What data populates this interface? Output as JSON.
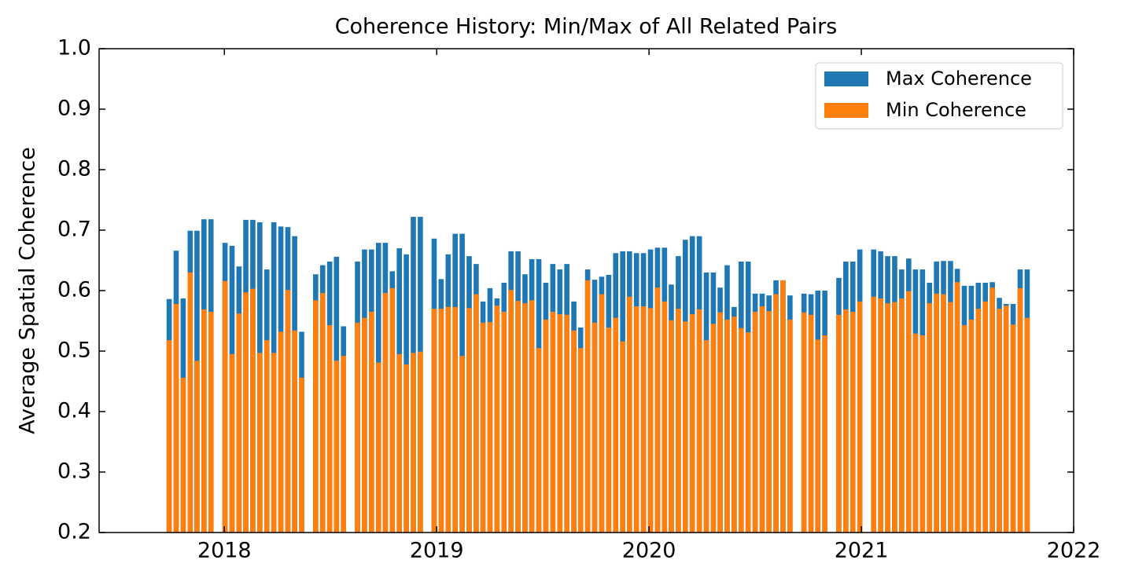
{
  "chart_data": {
    "type": "bar",
    "title": "Coherence History: Min/Max of All Related Pairs",
    "y_label": "Average Spatial Coherence",
    "x": [
      2017.74,
      2017.773,
      2017.806,
      2017.839,
      2017.871,
      2017.904,
      2017.937,
      2018.003,
      2018.036,
      2018.069,
      2018.101,
      2018.134,
      2018.167,
      2018.2,
      2018.233,
      2018.266,
      2018.299,
      2018.331,
      2018.364,
      2018.43,
      2018.463,
      2018.496,
      2018.528,
      2018.561,
      2018.627,
      2018.66,
      2018.693,
      2018.726,
      2018.758,
      2018.791,
      2018.824,
      2018.857,
      2018.89,
      2018.923,
      2018.988,
      2019.021,
      2019.054,
      2019.087,
      2019.12,
      2019.153,
      2019.186,
      2019.218,
      2019.251,
      2019.284,
      2019.317,
      2019.35,
      2019.383,
      2019.416,
      2019.448,
      2019.481,
      2019.514,
      2019.547,
      2019.58,
      2019.613,
      2019.646,
      2019.678,
      2019.711,
      2019.744,
      2019.777,
      2019.81,
      2019.843,
      2019.876,
      2019.908,
      2019.941,
      2019.974,
      2020.007,
      2020.04,
      2020.073,
      2020.105,
      2020.138,
      2020.171,
      2020.204,
      2020.237,
      2020.27,
      2020.303,
      2020.335,
      2020.368,
      2020.401,
      2020.434,
      2020.467,
      2020.5,
      2020.533,
      2020.565,
      2020.598,
      2020.631,
      2020.664,
      2020.73,
      2020.763,
      2020.795,
      2020.828,
      2020.894,
      2020.927,
      2020.96,
      2020.993,
      2021.058,
      2021.091,
      2021.124,
      2021.157,
      2021.19,
      2021.223,
      2021.255,
      2021.288,
      2021.321,
      2021.354,
      2021.387,
      2021.42,
      2021.452,
      2021.485,
      2021.518,
      2021.551,
      2021.584,
      2021.617,
      2021.65,
      2021.682,
      2021.715,
      2021.748,
      2021.781
    ],
    "series": [
      {
        "name": "Max Coherence",
        "color": "#1f77b4",
        "values": [
          0.586,
          0.666,
          0.587,
          0.699,
          0.699,
          0.718,
          0.718,
          0.679,
          0.674,
          0.64,
          0.717,
          0.717,
          0.713,
          0.635,
          0.713,
          0.706,
          0.705,
          0.69,
          0.532,
          0.627,
          0.642,
          0.648,
          0.656,
          0.541,
          0.648,
          0.668,
          0.668,
          0.679,
          0.679,
          0.632,
          0.67,
          0.66,
          0.722,
          0.722,
          0.686,
          0.619,
          0.66,
          0.694,
          0.694,
          0.657,
          0.644,
          0.582,
          0.604,
          0.587,
          0.613,
          0.665,
          0.665,
          0.627,
          0.652,
          0.652,
          0.613,
          0.644,
          0.635,
          0.644,
          0.582,
          0.539,
          0.635,
          0.618,
          0.623,
          0.626,
          0.662,
          0.665,
          0.665,
          0.662,
          0.662,
          0.668,
          0.671,
          0.671,
          0.61,
          0.657,
          0.684,
          0.69,
          0.69,
          0.63,
          0.63,
          0.605,
          0.642,
          0.573,
          0.648,
          0.648,
          0.595,
          0.595,
          0.592,
          0.617,
          0.617,
          0.592,
          0.595,
          0.594,
          0.6,
          0.6,
          0.621,
          0.648,
          0.648,
          0.668,
          0.668,
          0.665,
          0.657,
          0.657,
          0.635,
          0.653,
          0.635,
          0.635,
          0.613,
          0.648,
          0.649,
          0.649,
          0.636,
          0.608,
          0.608,
          0.613,
          0.613,
          0.614,
          0.588,
          0.578,
          0.578,
          0.635,
          0.635
        ]
      },
      {
        "name": "Min Coherence",
        "color": "#ff7f0e",
        "values": [
          0.518,
          0.578,
          0.456,
          0.63,
          0.484,
          0.569,
          0.565,
          0.616,
          0.495,
          0.562,
          0.597,
          0.603,
          0.497,
          0.518,
          0.497,
          0.532,
          0.601,
          0.534,
          0.456,
          0.584,
          0.596,
          0.543,
          0.484,
          0.492,
          0.547,
          0.555,
          0.565,
          0.481,
          0.596,
          0.604,
          0.495,
          0.478,
          0.497,
          0.499,
          0.57,
          0.57,
          0.573,
          0.573,
          0.492,
          0.571,
          0.594,
          0.547,
          0.548,
          0.575,
          0.565,
          0.601,
          0.583,
          0.579,
          0.584,
          0.505,
          0.552,
          0.565,
          0.561,
          0.56,
          0.534,
          0.505,
          0.617,
          0.547,
          0.594,
          0.539,
          0.555,
          0.516,
          0.59,
          0.574,
          0.574,
          0.571,
          0.605,
          0.582,
          0.551,
          0.57,
          0.549,
          0.561,
          0.569,
          0.518,
          0.545,
          0.564,
          0.552,
          0.557,
          0.538,
          0.531,
          0.565,
          0.574,
          0.566,
          0.594,
          0.617,
          0.552,
          0.564,
          0.56,
          0.519,
          0.526,
          0.56,
          0.569,
          0.565,
          0.582,
          0.59,
          0.587,
          0.579,
          0.581,
          0.587,
          0.599,
          0.529,
          0.526,
          0.579,
          0.595,
          0.594,
          0.581,
          0.614,
          0.543,
          0.552,
          0.57,
          0.582,
          0.605,
          0.57,
          0.575,
          0.544,
          0.604,
          0.555
        ]
      }
    ],
    "xlim": [
      2017.41,
      2022.0
    ],
    "xticks": [
      2018,
      2019,
      2020,
      2021,
      2022
    ],
    "ylim": [
      0.2,
      1.0
    ],
    "yticks": [
      0.2,
      0.3,
      0.4,
      0.5,
      0.6,
      0.7,
      0.8,
      0.9,
      {
        "value": 1.0,
        "label": "1.0"
      }
    ],
    "legend": "upper right"
  }
}
